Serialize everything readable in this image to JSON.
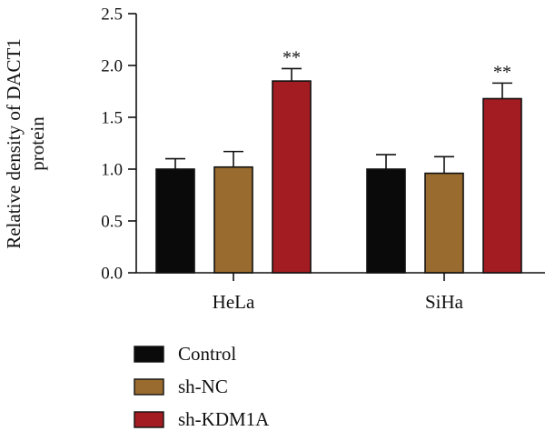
{
  "chart_data": {
    "type": "bar",
    "ylabel_lines": [
      "Relative density of DACT1",
      "protein"
    ],
    "ylim": [
      0,
      2.5
    ],
    "yticks": [
      "0.0",
      "0.5",
      "1.0",
      "1.5",
      "2.0",
      "2.5"
    ],
    "categories": [
      "HeLa",
      "SiHa"
    ],
    "series": [
      {
        "name": "Control",
        "color": "#0a0a0a",
        "values": [
          1.0,
          1.0
        ],
        "errors": [
          0.1,
          0.14
        ]
      },
      {
        "name": "sh-NC",
        "color": "#9a6b2e",
        "values": [
          1.02,
          0.96
        ],
        "errors": [
          0.15,
          0.16
        ]
      },
      {
        "name": "sh-KDM1A",
        "color": "#a31c22",
        "values": [
          1.85,
          1.68
        ],
        "errors": [
          0.12,
          0.15
        ]
      }
    ],
    "annotations": [
      {
        "series": "sh-KDM1A",
        "category": "HeLa",
        "text": "**"
      },
      {
        "series": "sh-KDM1A",
        "category": "SiHa",
        "text": "**"
      }
    ],
    "legend_position": "bottom-left"
  }
}
